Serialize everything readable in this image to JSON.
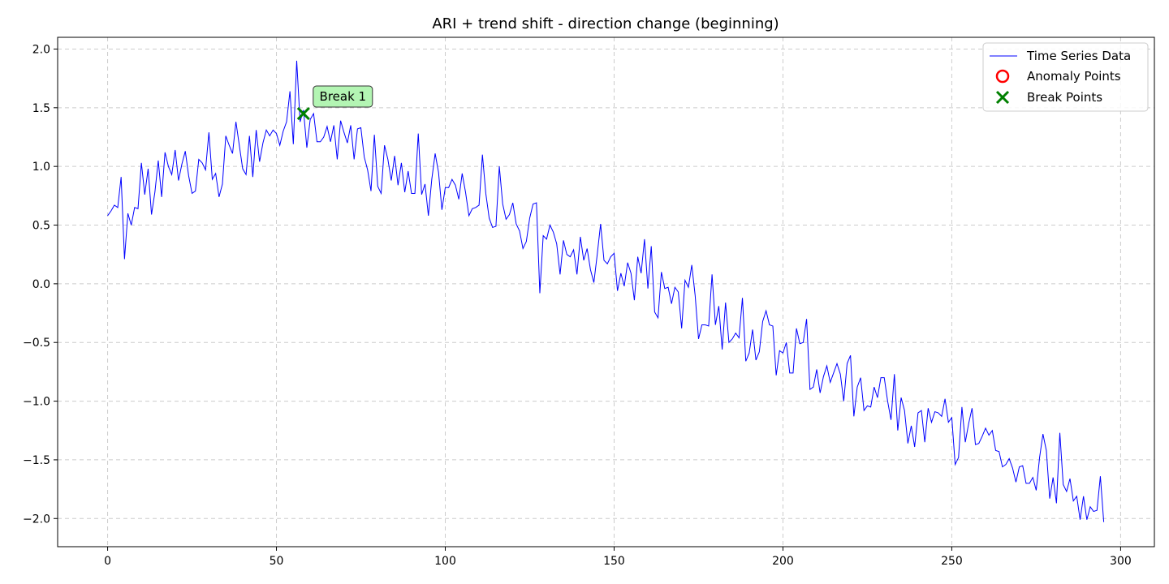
{
  "chart_data": {
    "type": "line",
    "title": "ARI + trend shift - direction change (beginning)",
    "xlabel": "",
    "ylabel": "",
    "xlim": [
      -14.8,
      310
    ],
    "ylim": [
      -2.24,
      2.1
    ],
    "xticks": [
      0,
      50,
      100,
      150,
      200,
      250,
      300
    ],
    "yticks": [
      2.0,
      1.5,
      1.0,
      0.5,
      0.0,
      -0.5,
      -1.0,
      -1.5,
      -2.0
    ],
    "xtick_labels": [
      "0",
      "50",
      "100",
      "150",
      "200",
      "250",
      "300"
    ],
    "ytick_labels": [
      "2.0",
      "1.5",
      "1.0",
      "0.5",
      "0.0",
      "−0.5",
      "−1.0",
      "−1.5",
      "−2.0"
    ],
    "grid": true,
    "legend_position": "top-right",
    "colors": {
      "line": "#0000ff",
      "anomaly": "#ff0000",
      "break": "#008000",
      "annotation_fill": "#b3f5b3",
      "grid": "#cccccc"
    },
    "series": [
      {
        "name": "Time Series Data",
        "kind": "line",
        "x_start": 0,
        "x_step": 1,
        "values": [
          0.58,
          0.62,
          0.67,
          0.65,
          0.91,
          0.21,
          0.6,
          0.5,
          0.65,
          0.64,
          1.03,
          0.76,
          0.98,
          0.59,
          0.78,
          1.05,
          0.74,
          1.12,
          1.0,
          0.93,
          1.14,
          0.88,
          1.02,
          1.13,
          0.92,
          0.77,
          0.79,
          1.06,
          1.03,
          0.97,
          1.29,
          0.89,
          0.94,
          0.74,
          0.85,
          1.26,
          1.18,
          1.11,
          1.38,
          1.18,
          0.98,
          0.93,
          1.26,
          0.91,
          1.31,
          1.04,
          1.2,
          1.31,
          1.26,
          1.31,
          1.28,
          1.18,
          1.3,
          1.38,
          1.64,
          1.19,
          1.9,
          1.38,
          1.48,
          1.16,
          1.4,
          1.45,
          1.21,
          1.21,
          1.25,
          1.34,
          1.21,
          1.35,
          1.06,
          1.39,
          1.29,
          1.2,
          1.35,
          1.06,
          1.32,
          1.33,
          1.08,
          0.97,
          0.79,
          1.27,
          0.83,
          0.77,
          1.18,
          1.06,
          0.88,
          1.09,
          0.84,
          1.03,
          0.78,
          0.96,
          0.77,
          0.77,
          1.28,
          0.76,
          0.85,
          0.58,
          0.89,
          1.11,
          0.95,
          0.63,
          0.82,
          0.82,
          0.89,
          0.84,
          0.72,
          0.94,
          0.78,
          0.58,
          0.64,
          0.65,
          0.67,
          1.1,
          0.77,
          0.56,
          0.48,
          0.49,
          1.0,
          0.68,
          0.55,
          0.59,
          0.69,
          0.51,
          0.45,
          0.3,
          0.36,
          0.56,
          0.68,
          0.69,
          -0.08,
          0.41,
          0.38,
          0.5,
          0.44,
          0.34,
          0.08,
          0.37,
          0.25,
          0.23,
          0.29,
          0.08,
          0.4,
          0.2,
          0.3,
          0.12,
          0.01,
          0.25,
          0.51,
          0.2,
          0.17,
          0.23,
          0.26,
          -0.06,
          0.09,
          -0.02,
          0.18,
          0.09,
          -0.14,
          0.23,
          0.09,
          0.38,
          -0.04,
          0.32,
          -0.24,
          -0.29,
          0.1,
          -0.04,
          -0.03,
          -0.17,
          -0.03,
          -0.07,
          -0.38,
          0.03,
          -0.03,
          0.16,
          -0.1,
          -0.47,
          -0.35,
          -0.35,
          -0.36,
          0.08,
          -0.35,
          -0.19,
          -0.56,
          -0.16,
          -0.5,
          -0.47,
          -0.42,
          -0.46,
          -0.12,
          -0.66,
          -0.59,
          -0.39,
          -0.65,
          -0.58,
          -0.32,
          -0.23,
          -0.35,
          -0.36,
          -0.78,
          -0.57,
          -0.59,
          -0.5,
          -0.76,
          -0.76,
          -0.38,
          -0.51,
          -0.5,
          -0.3,
          -0.9,
          -0.88,
          -0.73,
          -0.93,
          -0.79,
          -0.7,
          -0.84,
          -0.76,
          -0.68,
          -0.77,
          -1.0,
          -0.68,
          -0.61,
          -1.13,
          -0.88,
          -0.8,
          -1.08,
          -1.04,
          -1.05,
          -0.88,
          -0.97,
          -0.8,
          -0.8,
          -1.0,
          -1.16,
          -0.77,
          -1.25,
          -0.97,
          -1.08,
          -1.36,
          -1.21,
          -1.39,
          -1.1,
          -1.08,
          -1.35,
          -1.06,
          -1.18,
          -1.09,
          -1.1,
          -1.13,
          -0.98,
          -1.18,
          -1.14,
          -1.54,
          -1.48,
          -1.05,
          -1.35,
          -1.19,
          -1.06,
          -1.37,
          -1.36,
          -1.3,
          -1.23,
          -1.29,
          -1.25,
          -1.42,
          -1.43,
          -1.56,
          -1.54,
          -1.49,
          -1.57,
          -1.69,
          -1.56,
          -1.55,
          -1.7,
          -1.7,
          -1.65,
          -1.76,
          -1.48,
          -1.28,
          -1.42,
          -1.83,
          -1.65,
          -1.87,
          -1.27,
          -1.71,
          -1.77,
          -1.66,
          -1.85,
          -1.81,
          -2.01,
          -1.81,
          -2.01,
          -1.9,
          -1.94,
          -1.93,
          -1.64,
          -2.03
        ]
      },
      {
        "name": "Anomaly Points",
        "kind": "scatter",
        "marker": "circle-open",
        "points": []
      },
      {
        "name": "Break Points",
        "kind": "scatter",
        "marker": "x",
        "points": [
          {
            "x": 58,
            "y": 1.45
          }
        ]
      }
    ],
    "annotations": [
      {
        "text": "Break 1",
        "x": 58,
        "y": 1.45
      }
    ]
  }
}
